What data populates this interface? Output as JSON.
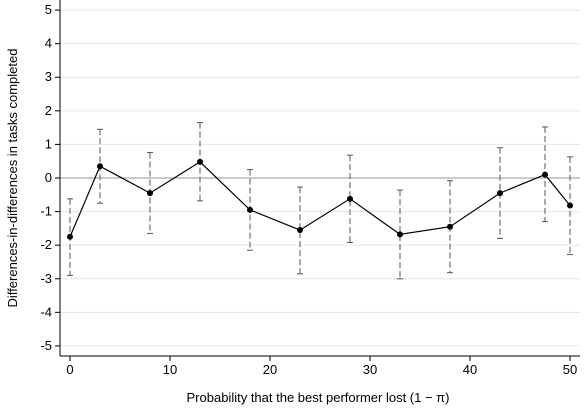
{
  "chart_data": {
    "type": "line",
    "xlabel": "Probability that the best performer lost (1 − π)",
    "ylabel": "Differences-in-differences in tasks completed",
    "xlim": [
      -1,
      51
    ],
    "ylim": [
      -5.3,
      5.3
    ],
    "x_ticks": [
      0,
      10,
      20,
      30,
      40,
      50
    ],
    "y_ticks": [
      -5,
      -4,
      -3,
      -2,
      -1,
      0,
      1,
      2,
      3,
      4,
      5
    ],
    "y_tick_labels": [
      "-5",
      "-4",
      "-3",
      "-2",
      "-1",
      "0",
      "1",
      "2",
      "3",
      "4",
      "5"
    ],
    "grid": true,
    "reference_line_y": 0,
    "series": [
      {
        "x": [
          0,
          3,
          8,
          13,
          18,
          23,
          28,
          33,
          38,
          43,
          47.5,
          50
        ],
        "y": [
          -1.75,
          0.35,
          -0.45,
          0.48,
          -0.95,
          -1.55,
          -0.62,
          -1.68,
          -1.45,
          -0.45,
          0.1,
          -0.82
        ],
        "lower": [
          -2.9,
          -0.75,
          -1.65,
          -0.68,
          -2.15,
          -2.85,
          -1.92,
          -3.0,
          -2.82,
          -1.8,
          -1.3,
          -2.28
        ],
        "upper": [
          -0.62,
          1.45,
          0.76,
          1.65,
          0.25,
          -0.27,
          0.68,
          -0.36,
          -0.08,
          0.9,
          1.52,
          0.63
        ]
      }
    ],
    "colors": {
      "line": "#000000",
      "error_bars": "#555555",
      "grid": "#e6e6e6",
      "reference": "#aaaaaa"
    }
  }
}
